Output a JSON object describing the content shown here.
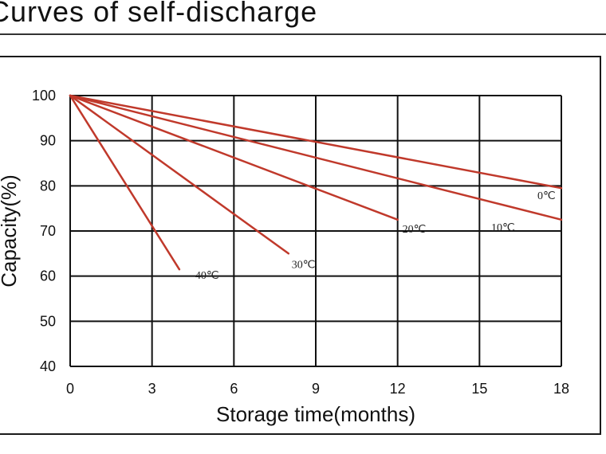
{
  "page": {
    "title": "Curves of self-discharge"
  },
  "colors": {
    "series": "#c0392b",
    "grid": "#111111"
  },
  "chart_data": {
    "type": "line",
    "title": "",
    "xlabel": "Storage time(months)",
    "ylabel": "Capacity(%)",
    "xlim": [
      0,
      18
    ],
    "ylim": [
      40,
      100
    ],
    "xticks": [
      "0",
      "3",
      "6",
      "9",
      "12",
      "15",
      "18"
    ],
    "yticks": [
      "40",
      "50",
      "60",
      "70",
      "80",
      "90",
      "100"
    ],
    "grid": true,
    "series": [
      {
        "name": "0℃",
        "x": [
          0,
          18
        ],
        "y": [
          100,
          79.5
        ]
      },
      {
        "name": "10℃",
        "x": [
          0,
          18
        ],
        "y": [
          100,
          72.5
        ]
      },
      {
        "name": "20℃",
        "x": [
          0,
          12
        ],
        "y": [
          100,
          72.5
        ]
      },
      {
        "name": "30℃",
        "x": [
          0,
          8
        ],
        "y": [
          100,
          65
        ]
      },
      {
        "name": "40℃",
        "x": [
          0,
          4
        ],
        "y": [
          100,
          61.5
        ]
      }
    ]
  }
}
